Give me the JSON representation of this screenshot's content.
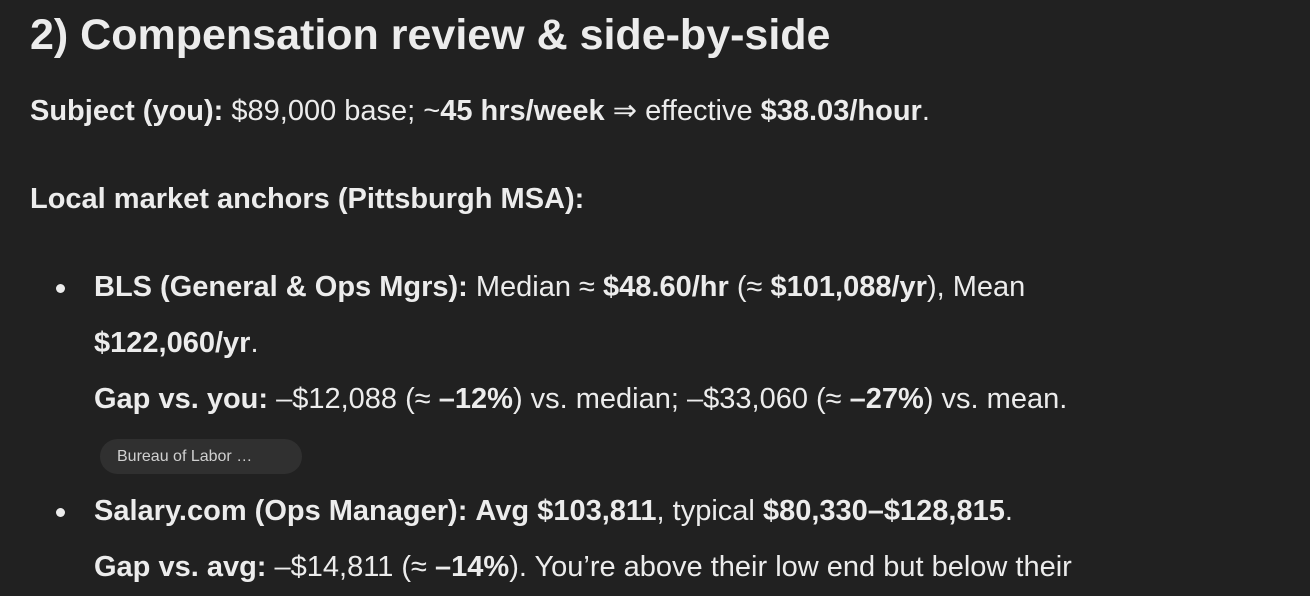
{
  "heading": "2) Compensation review & side-by-side",
  "subject": [
    "Subject (you):",
    "$89,000 base; ~",
    "45 hrs/week",
    "⇒ effective",
    "$38.03/hour",
    "."
  ],
  "anchors_title": "Local market anchors (Pittsburgh MSA):",
  "items": [
    {
      "line1": [
        "BLS (General & Ops Mgrs):",
        "Median ≈",
        "$48.60/hr",
        "(≈",
        "$101,088/yr",
        "), Mean"
      ],
      "line2": [
        "$122,060/yr",
        "."
      ],
      "gap": [
        "Gap vs. you:",
        "–$12,088 (≈",
        "–12%",
        ") vs. median; –$33,060 (≈",
        "–27%",
        ") vs. mean."
      ],
      "source": "Bureau of Labor …"
    },
    {
      "line1": [
        "Salary.com (Ops Manager):",
        "Avg $103,811",
        ", typical",
        "$80,330–$128,815",
        "."
      ],
      "gap": [
        "Gap vs. avg:",
        "–$14,811 (≈",
        "–14%",
        "). You’re above their low end but below their"
      ]
    }
  ]
}
